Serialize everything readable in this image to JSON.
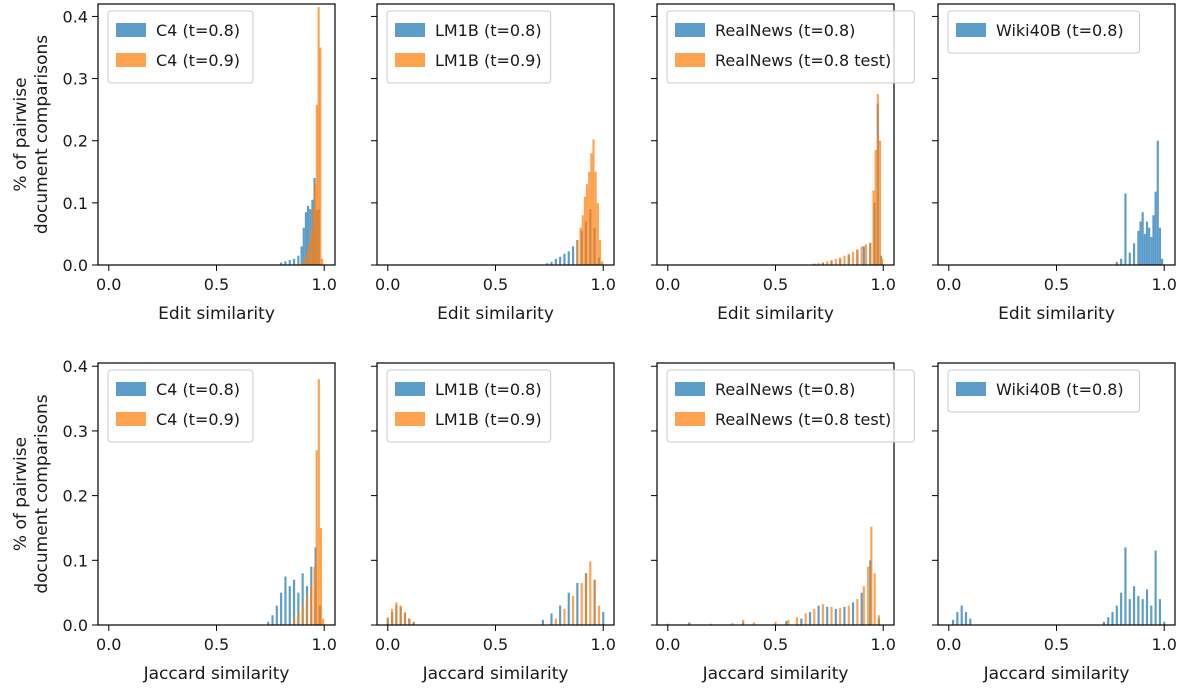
{
  "figure": {
    "ylabel_lines": [
      "% of pairwise",
      "document comparisons"
    ]
  },
  "chart_data": [
    {
      "type": "histogram",
      "xlabel": "Edit similarity",
      "xlim": [
        -0.05,
        1.05
      ],
      "ylim": [
        0,
        0.42
      ],
      "xticks": [
        0.0,
        0.5,
        1.0
      ],
      "yticks": [
        0.0,
        0.1,
        0.2,
        0.3,
        0.4
      ],
      "legend_position": "top-left",
      "series": [
        {
          "name": "C4 (t=0.8)",
          "color": "#1f77b4",
          "bins": [
            [
              0.8,
              0.004
            ],
            [
              0.82,
              0.006
            ],
            [
              0.84,
              0.008
            ],
            [
              0.86,
              0.01
            ],
            [
              0.88,
              0.015
            ],
            [
              0.895,
              0.03
            ],
            [
              0.905,
              0.06
            ],
            [
              0.915,
              0.085
            ],
            [
              0.925,
              0.095
            ],
            [
              0.935,
              0.09
            ],
            [
              0.945,
              0.105
            ],
            [
              0.955,
              0.14
            ],
            [
              0.965,
              0.088
            ],
            [
              0.975,
              0.09
            ]
          ]
        },
        {
          "name": "C4 (t=0.9)",
          "color": "#ff7f0e",
          "bins": [
            [
              0.9,
              0.004
            ],
            [
              0.91,
              0.01
            ],
            [
              0.92,
              0.02
            ],
            [
              0.93,
              0.035
            ],
            [
              0.94,
              0.055
            ],
            [
              0.95,
              0.09
            ],
            [
              0.958,
              0.13
            ],
            [
              0.966,
              0.258
            ],
            [
              0.974,
              0.415
            ],
            [
              0.982,
              0.35
            ],
            [
              0.99,
              0.01
            ]
          ]
        }
      ]
    },
    {
      "type": "histogram",
      "xlabel": "Edit similarity",
      "xlim": [
        -0.05,
        1.05
      ],
      "ylim": [
        0,
        0.42
      ],
      "xticks": [
        0.0,
        0.5,
        1.0
      ],
      "yticks": [
        0.0,
        0.1,
        0.2,
        0.3,
        0.4
      ],
      "legend_position": "top-left",
      "series": [
        {
          "name": "LM1B (t=0.8)",
          "color": "#1f77b4",
          "bins": [
            [
              0.74,
              0.003
            ],
            [
              0.76,
              0.005
            ],
            [
              0.78,
              0.01
            ],
            [
              0.8,
              0.013
            ],
            [
              0.82,
              0.018
            ],
            [
              0.84,
              0.022
            ],
            [
              0.86,
              0.03
            ],
            [
              0.88,
              0.04
            ],
            [
              0.9,
              0.055
            ],
            [
              0.92,
              0.07
            ],
            [
              0.94,
              0.09
            ],
            [
              0.96,
              0.06
            ],
            [
              0.98,
              0.012
            ]
          ]
        },
        {
          "name": "LM1B (t=0.9)",
          "color": "#ff7f0e",
          "bins": [
            [
              0.88,
              0.04
            ],
            [
              0.895,
              0.06
            ],
            [
              0.905,
              0.08
            ],
            [
              0.915,
              0.11
            ],
            [
              0.925,
              0.13
            ],
            [
              0.935,
              0.15
            ],
            [
              0.945,
              0.18
            ],
            [
              0.955,
              0.202
            ],
            [
              0.965,
              0.15
            ],
            [
              0.975,
              0.1
            ],
            [
              0.985,
              0.04
            ],
            [
              0.995,
              0.006
            ]
          ]
        }
      ]
    },
    {
      "type": "histogram",
      "xlabel": "Edit similarity",
      "xlim": [
        -0.05,
        1.05
      ],
      "ylim": [
        0,
        0.42
      ],
      "xticks": [
        0.0,
        0.5,
        1.0
      ],
      "yticks": [
        0.0,
        0.1,
        0.2,
        0.3,
        0.4
      ],
      "legend_position": "top-left",
      "series": [
        {
          "name": "RealNews (t=0.8)",
          "color": "#1f77b4",
          "bins": [
            [
              0.68,
              0.002
            ],
            [
              0.72,
              0.004
            ],
            [
              0.76,
              0.006
            ],
            [
              0.8,
              0.01
            ],
            [
              0.84,
              0.016
            ],
            [
              0.88,
              0.024
            ],
            [
              0.91,
              0.03
            ],
            [
              0.94,
              0.035
            ],
            [
              0.96,
              0.1
            ],
            [
              0.975,
              0.26
            ],
            [
              0.99,
              0.015
            ]
          ]
        },
        {
          "name": "RealNews (t=0.8 test)",
          "color": "#ff7f0e",
          "bins": [
            [
              0.68,
              0.002
            ],
            [
              0.7,
              0.003
            ],
            [
              0.72,
              0.004
            ],
            [
              0.74,
              0.006
            ],
            [
              0.76,
              0.008
            ],
            [
              0.78,
              0.01
            ],
            [
              0.8,
              0.012
            ],
            [
              0.82,
              0.015
            ],
            [
              0.84,
              0.018
            ],
            [
              0.86,
              0.021
            ],
            [
              0.88,
              0.025
            ],
            [
              0.9,
              0.03
            ],
            [
              0.92,
              0.033
            ],
            [
              0.94,
              0.036
            ],
            [
              0.955,
              0.12
            ],
            [
              0.965,
              0.185
            ],
            [
              0.975,
              0.275
            ],
            [
              0.985,
              0.2
            ],
            [
              0.995,
              0.01
            ]
          ]
        }
      ]
    },
    {
      "type": "histogram",
      "xlabel": "Edit similarity",
      "xlim": [
        -0.05,
        1.05
      ],
      "ylim": [
        0,
        0.42
      ],
      "xticks": [
        0.0,
        0.5,
        1.0
      ],
      "yticks": [
        0.0,
        0.1,
        0.2,
        0.3,
        0.4
      ],
      "legend_position": "top-left",
      "series": [
        {
          "name": "Wiki40B (t=0.8)",
          "color": "#1f77b4",
          "bins": [
            [
              0.78,
              0.005
            ],
            [
              0.8,
              0.01
            ],
            [
              0.82,
              0.115
            ],
            [
              0.84,
              0.02
            ],
            [
              0.86,
              0.035
            ],
            [
              0.88,
              0.055
            ],
            [
              0.89,
              0.07
            ],
            [
              0.9,
              0.085
            ],
            [
              0.91,
              0.05
            ],
            [
              0.92,
              0.07
            ],
            [
              0.93,
              0.06
            ],
            [
              0.94,
              0.045
            ],
            [
              0.95,
              0.08
            ],
            [
              0.96,
              0.118
            ],
            [
              0.97,
              0.2
            ],
            [
              0.98,
              0.06
            ],
            [
              0.99,
              0.01
            ]
          ]
        }
      ]
    },
    {
      "type": "histogram",
      "xlabel": "Jaccard similarity",
      "xlim": [
        -0.05,
        1.05
      ],
      "ylim": [
        0,
        0.405
      ],
      "xticks": [
        0.0,
        0.5,
        1.0
      ],
      "yticks": [
        0.0,
        0.1,
        0.2,
        0.3,
        0.4
      ],
      "legend_position": "top-left",
      "series": [
        {
          "name": "C4 (t=0.8)",
          "color": "#1f77b4",
          "bins": [
            [
              0.74,
              0.005
            ],
            [
              0.76,
              0.015
            ],
            [
              0.78,
              0.03
            ],
            [
              0.8,
              0.05
            ],
            [
              0.82,
              0.075
            ],
            [
              0.84,
              0.06
            ],
            [
              0.86,
              0.07
            ],
            [
              0.88,
              0.05
            ],
            [
              0.9,
              0.08
            ],
            [
              0.92,
              0.06
            ],
            [
              0.94,
              0.09
            ],
            [
              0.96,
              0.12
            ],
            [
              0.98,
              0.03
            ]
          ]
        },
        {
          "name": "C4 (t=0.9)",
          "color": "#ff7f0e",
          "bins": [
            [
              0.86,
              0.01
            ],
            [
              0.88,
              0.02
            ],
            [
              0.9,
              0.03
            ],
            [
              0.92,
              0.045
            ],
            [
              0.94,
              0.06
            ],
            [
              0.955,
              0.09
            ],
            [
              0.965,
              0.27
            ],
            [
              0.975,
              0.38
            ],
            [
              0.985,
              0.15
            ],
            [
              0.995,
              0.01
            ]
          ]
        }
      ]
    },
    {
      "type": "histogram",
      "xlabel": "Jaccard similarity",
      "xlim": [
        -0.05,
        1.05
      ],
      "ylim": [
        0,
        0.405
      ],
      "xticks": [
        0.0,
        0.5,
        1.0
      ],
      "yticks": [
        0.0,
        0.1,
        0.2,
        0.3,
        0.4
      ],
      "legend_position": "top-left",
      "series": [
        {
          "name": "LM1B (t=0.8)",
          "color": "#1f77b4",
          "bins": [
            [
              0.0,
              0.01
            ],
            [
              0.02,
              0.02
            ],
            [
              0.04,
              0.03
            ],
            [
              0.06,
              0.028
            ],
            [
              0.08,
              0.018
            ],
            [
              0.1,
              0.01
            ],
            [
              0.12,
              0.005
            ],
            [
              0.72,
              0.008
            ],
            [
              0.76,
              0.018
            ],
            [
              0.8,
              0.03
            ],
            [
              0.84,
              0.05
            ],
            [
              0.88,
              0.065
            ],
            [
              0.92,
              0.08
            ],
            [
              0.96,
              0.07
            ],
            [
              1.0,
              0.02
            ]
          ]
        },
        {
          "name": "LM1B (t=0.9)",
          "color": "#ff7f0e",
          "bins": [
            [
              0.0,
              0.012
            ],
            [
              0.02,
              0.025
            ],
            [
              0.04,
              0.035
            ],
            [
              0.06,
              0.03
            ],
            [
              0.08,
              0.02
            ],
            [
              0.1,
              0.01
            ],
            [
              0.12,
              0.004
            ],
            [
              0.78,
              0.01
            ],
            [
              0.82,
              0.025
            ],
            [
              0.86,
              0.045
            ],
            [
              0.9,
              0.065
            ],
            [
              0.92,
              0.08
            ],
            [
              0.94,
              0.098
            ],
            [
              0.96,
              0.07
            ],
            [
              0.98,
              0.03
            ]
          ]
        }
      ]
    },
    {
      "type": "histogram",
      "xlabel": "Jaccard similarity",
      "xlim": [
        -0.05,
        1.05
      ],
      "ylim": [
        0,
        0.405
      ],
      "xticks": [
        0.0,
        0.5,
        1.0
      ],
      "yticks": [
        0.0,
        0.1,
        0.2,
        0.3,
        0.4
      ],
      "legend_position": "top-left",
      "series": [
        {
          "name": "RealNews (t=0.8)",
          "color": "#1f77b4",
          "bins": [
            [
              0.1,
              0.004
            ],
            [
              0.35,
              0.004
            ],
            [
              0.55,
              0.006
            ],
            [
              0.62,
              0.01
            ],
            [
              0.66,
              0.02
            ],
            [
              0.7,
              0.03
            ],
            [
              0.74,
              0.028
            ],
            [
              0.78,
              0.025
            ],
            [
              0.82,
              0.028
            ],
            [
              0.86,
              0.035
            ],
            [
              0.9,
              0.05
            ],
            [
              0.94,
              0.1
            ],
            [
              0.98,
              0.01
            ]
          ]
        },
        {
          "name": "RealNews (t=0.8 test)",
          "color": "#ff7f0e",
          "bins": [
            [
              0.0,
              0.002
            ],
            [
              0.1,
              0.003
            ],
            [
              0.2,
              0.002
            ],
            [
              0.3,
              0.003
            ],
            [
              0.35,
              0.008
            ],
            [
              0.4,
              0.004
            ],
            [
              0.5,
              0.005
            ],
            [
              0.56,
              0.008
            ],
            [
              0.6,
              0.012
            ],
            [
              0.64,
              0.018
            ],
            [
              0.68,
              0.025
            ],
            [
              0.72,
              0.032
            ],
            [
              0.76,
              0.028
            ],
            [
              0.8,
              0.026
            ],
            [
              0.84,
              0.03
            ],
            [
              0.88,
              0.04
            ],
            [
              0.91,
              0.06
            ],
            [
              0.93,
              0.09
            ],
            [
              0.945,
              0.152
            ],
            [
              0.96,
              0.08
            ],
            [
              0.98,
              0.015
            ]
          ]
        }
      ]
    },
    {
      "type": "histogram",
      "xlabel": "Jaccard similarity",
      "xlim": [
        -0.05,
        1.05
      ],
      "ylim": [
        0,
        0.405
      ],
      "xticks": [
        0.0,
        0.5,
        1.0
      ],
      "yticks": [
        0.0,
        0.1,
        0.2,
        0.3,
        0.4
      ],
      "legend_position": "top-left",
      "series": [
        {
          "name": "Wiki40B (t=0.8)",
          "color": "#1f77b4",
          "bins": [
            [
              0.02,
              0.008
            ],
            [
              0.04,
              0.02
            ],
            [
              0.06,
              0.03
            ],
            [
              0.08,
              0.02
            ],
            [
              0.1,
              0.01
            ],
            [
              0.72,
              0.005
            ],
            [
              0.74,
              0.012
            ],
            [
              0.76,
              0.02
            ],
            [
              0.78,
              0.03
            ],
            [
              0.8,
              0.05
            ],
            [
              0.82,
              0.12
            ],
            [
              0.84,
              0.04
            ],
            [
              0.86,
              0.06
            ],
            [
              0.88,
              0.045
            ],
            [
              0.9,
              0.04
            ],
            [
              0.92,
              0.055
            ],
            [
              0.94,
              0.03
            ],
            [
              0.96,
              0.115
            ],
            [
              0.98,
              0.04
            ],
            [
              1.0,
              0.005
            ]
          ]
        }
      ]
    }
  ]
}
